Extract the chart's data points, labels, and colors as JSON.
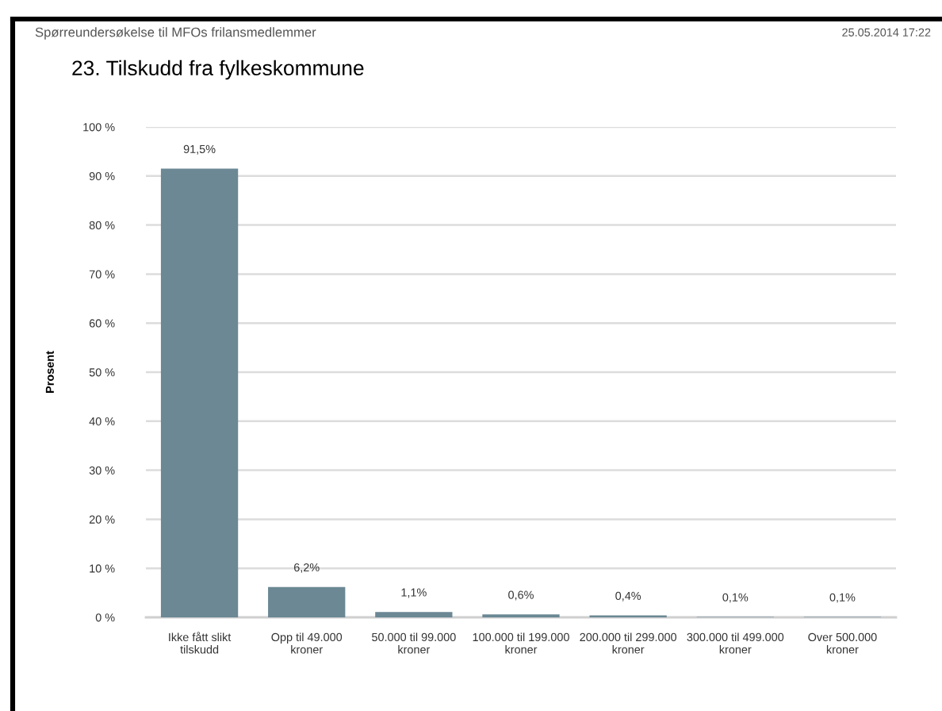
{
  "chart_data": {
    "type": "bar",
    "title": "23. Tilskudd fra fylkeskommune",
    "subtitle": "Spørreundersøkelse til MFOs frilansmedlemmer",
    "annotations": [
      "25.05.2014 17:22"
    ],
    "ylabel": "Prosent",
    "categories": [
      "Ikke fått slikt tilskudd",
      "Opp til 49.000 kroner",
      "50.000 til 99.000 kroner",
      "100.000 til 199.000 kroner",
      "200.000 til 299.000 kroner",
      "300.000 til 499.000 kroner",
      "Over 500.000 kroner"
    ],
    "values": [
      91.5,
      6.2,
      1.1,
      0.6,
      0.4,
      0.1,
      0.1
    ],
    "value_labels": [
      "91,5%",
      "6,2%",
      "1,1%",
      "0,6%",
      "0,4%",
      "0,1%",
      "0,1%"
    ],
    "color": "#6b8894",
    "ylim": [
      0,
      100
    ],
    "yticks": [
      {
        "value": 0,
        "label": "0 %"
      },
      {
        "value": 10,
        "label": "10 %"
      },
      {
        "value": 20,
        "label": "20 %"
      },
      {
        "value": 30,
        "label": "30 %"
      },
      {
        "value": 40,
        "label": "40 %"
      },
      {
        "value": 50,
        "label": "50 %"
      },
      {
        "value": 60,
        "label": "60 %"
      },
      {
        "value": 70,
        "label": "70 %"
      },
      {
        "value": 80,
        "label": "80 %"
      },
      {
        "value": 90,
        "label": "90 %"
      },
      {
        "value": 100,
        "label": "100 %"
      }
    ],
    "grid": "y"
  }
}
